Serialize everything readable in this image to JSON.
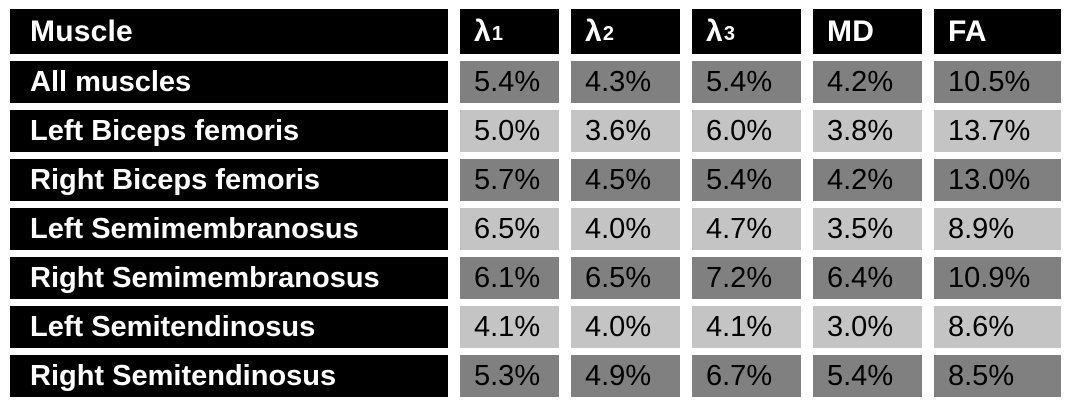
{
  "table": {
    "colors": {
      "page_background": "#ffffff",
      "header_bg": "#000000",
      "header_text": "#ffffff",
      "dark_row_cell": "#808080",
      "light_row_cell": "#c4c4c4",
      "value_text": "#000000"
    },
    "columns": [
      {
        "base": "Muscle",
        "sub": ""
      },
      {
        "base": "λ",
        "sub": "1"
      },
      {
        "base": "λ",
        "sub": "2"
      },
      {
        "base": "λ",
        "sub": "3"
      },
      {
        "base": "MD",
        "sub": ""
      },
      {
        "base": "FA",
        "sub": ""
      }
    ],
    "rows": [
      {
        "muscle": "All muscles",
        "shade": "dark",
        "values": [
          "5.4%",
          "4.3%",
          "5.4%",
          "4.2%",
          "10.5%"
        ]
      },
      {
        "muscle": "Left Biceps femoris",
        "shade": "light",
        "values": [
          "5.0%",
          "3.6%",
          "6.0%",
          "3.8%",
          "13.7%"
        ]
      },
      {
        "muscle": "Right Biceps femoris",
        "shade": "dark",
        "values": [
          "5.7%",
          "4.5%",
          "5.4%",
          "4.2%",
          "13.0%"
        ]
      },
      {
        "muscle": "Left Semimembranosus",
        "shade": "light",
        "values": [
          "6.5%",
          "4.0%",
          "4.7%",
          "3.5%",
          "8.9%"
        ]
      },
      {
        "muscle": "Right Semimembranosus",
        "shade": "dark",
        "values": [
          "6.1%",
          "6.5%",
          "7.2%",
          "6.4%",
          "10.9%"
        ]
      },
      {
        "muscle": "Left Semitendinosus",
        "shade": "light",
        "values": [
          "4.1%",
          "4.0%",
          "4.1%",
          "3.0%",
          "8.6%"
        ]
      },
      {
        "muscle": "Right Semitendinosus",
        "shade": "dark",
        "values": [
          "5.3%",
          "4.9%",
          "6.7%",
          "5.4%",
          "8.5%"
        ]
      }
    ]
  },
  "chart_data": {
    "type": "table",
    "title": "",
    "columns": [
      "Muscle",
      "λ1",
      "λ2",
      "λ3",
      "MD",
      "FA"
    ],
    "rows": [
      [
        "All muscles",
        "5.4%",
        "4.3%",
        "5.4%",
        "4.2%",
        "10.5%"
      ],
      [
        "Left Biceps femoris",
        "5.0%",
        "3.6%",
        "6.0%",
        "3.8%",
        "13.7%"
      ],
      [
        "Right Biceps femoris",
        "5.7%",
        "4.5%",
        "5.4%",
        "4.2%",
        "13.0%"
      ],
      [
        "Left Semimembranosus",
        "6.5%",
        "4.0%",
        "4.7%",
        "3.5%",
        "8.9%"
      ],
      [
        "Right Semimembranosus",
        "6.1%",
        "6.5%",
        "7.2%",
        "6.4%",
        "10.9%"
      ],
      [
        "Left Semitendinosus",
        "4.1%",
        "4.0%",
        "4.1%",
        "3.0%",
        "8.6%"
      ],
      [
        "Right Semitendinosus",
        "5.3%",
        "4.9%",
        "6.7%",
        "5.4%",
        "8.5%"
      ]
    ]
  }
}
